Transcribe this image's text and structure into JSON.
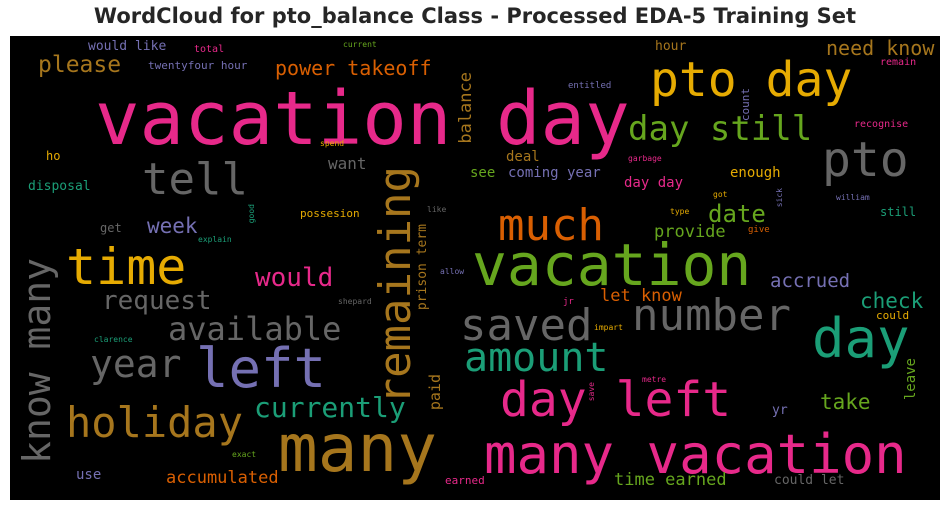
{
  "title": "WordCloud for pto_balance Class - Processed EDA-5 Training Set",
  "colors": {
    "pink": "#e7298a",
    "gold": "#e6ab02",
    "gray": "#666666",
    "green": "#1b9e77",
    "lime": "#66a61e",
    "orange": "#d95f02",
    "purple": "#7570b3",
    "brown": "#a6761d"
  },
  "words": [
    "vacation day",
    "pto day",
    "many",
    "many vacation",
    "vacation",
    "day left",
    "left",
    "time",
    "pto",
    "day",
    "tell",
    "much",
    "number",
    "saved",
    "amount",
    "holiday",
    "remaining",
    "know many",
    "available",
    "year",
    "day still",
    "request",
    "would",
    "currently",
    "date",
    "need know",
    "please",
    "power takeoff",
    "week",
    "check",
    "take",
    "accrued",
    "let know",
    "provide",
    "balance",
    "accumulated",
    "time earned",
    "paid",
    "prison term",
    "want",
    "deal",
    "see",
    "coming year",
    "day day",
    "enough",
    "disposal",
    "hour",
    "could let",
    "use",
    "leave",
    "yr",
    "could",
    "get",
    "ho",
    "possesion",
    "still",
    "would like",
    "twentyfour hour",
    "total",
    "current",
    "remain",
    "entitled",
    "recognise",
    "count",
    "garbage",
    "spend",
    "william",
    "sick",
    "got",
    "type",
    "give",
    "good",
    "explain",
    "like",
    "allow",
    "shepard",
    "jr",
    "impart",
    "clarence",
    "metre",
    "save",
    "exact",
    "earned"
  ]
}
